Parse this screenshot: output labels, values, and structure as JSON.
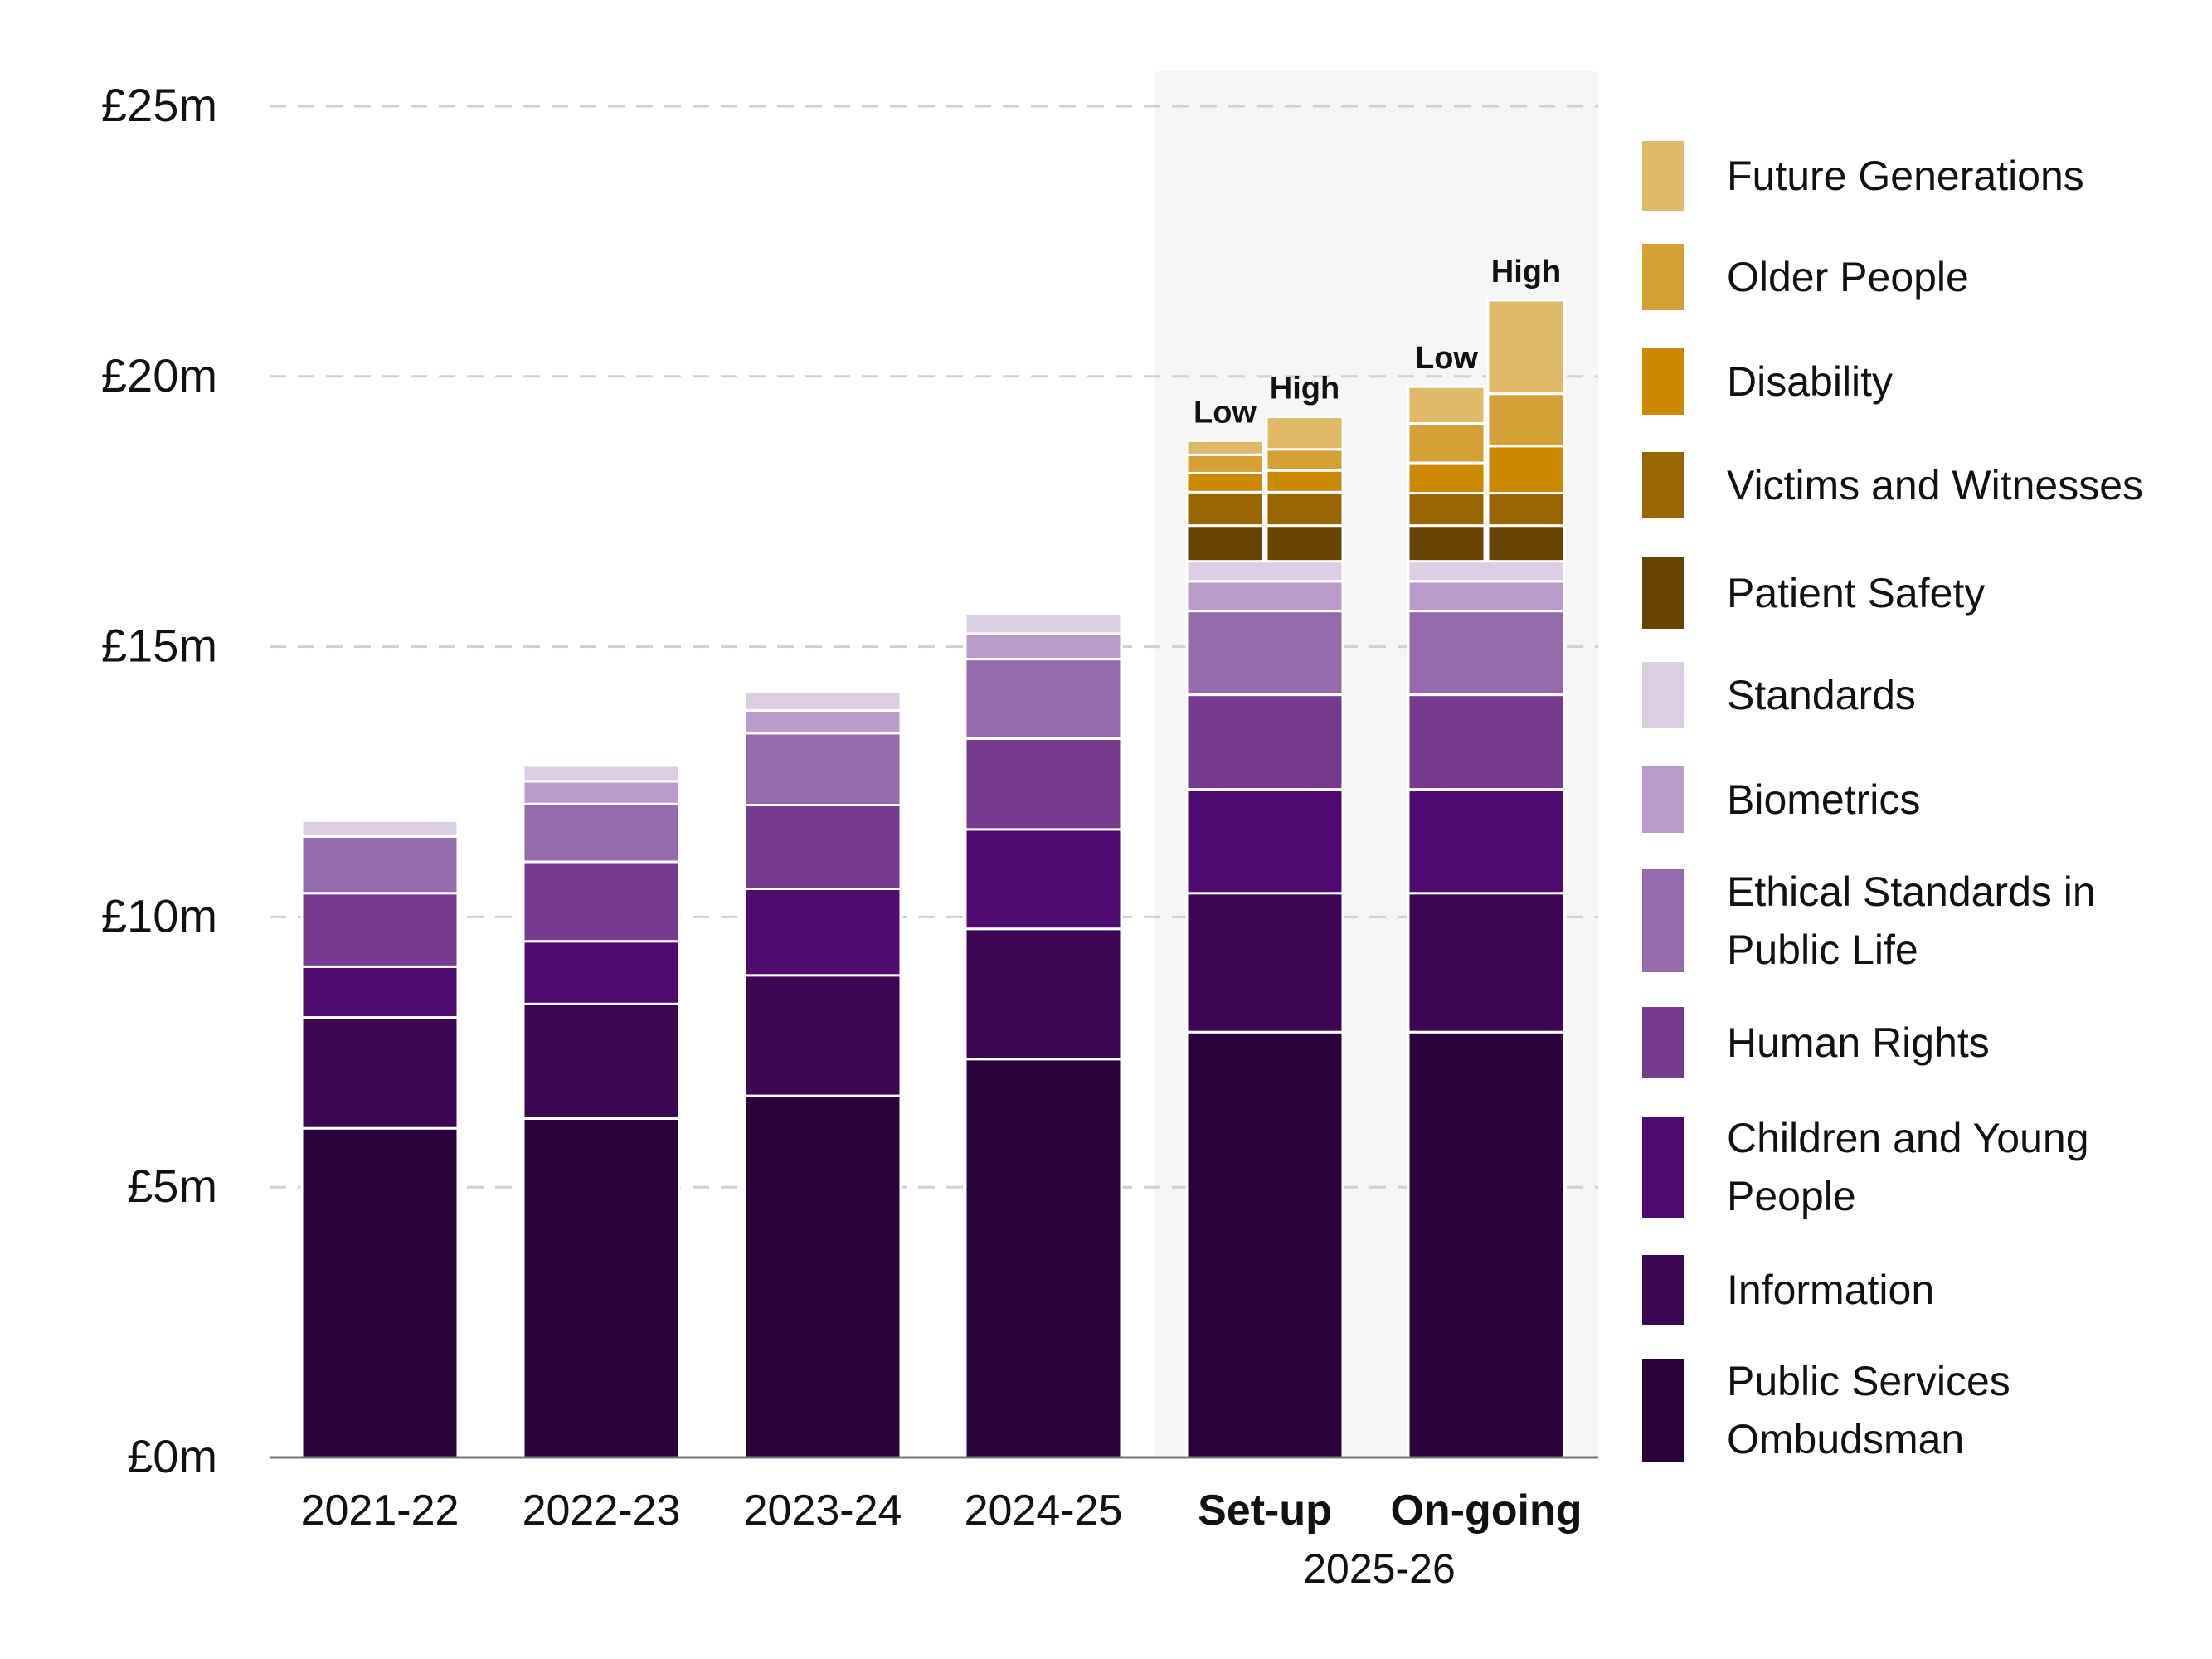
{
  "chart_data": {
    "type": "bar",
    "stacked": true,
    "categories": [
      "2021-22",
      "2022-23",
      "2023-24",
      "2024-25",
      "Set-up",
      "On-going"
    ],
    "category_group": {
      "label": "2025-26",
      "categories": [
        "Set-up",
        "On-going"
      ]
    },
    "scenario_labels": {
      "low": "Low",
      "high": "High"
    },
    "ylim": [
      0,
      25
    ],
    "yticks": [
      0,
      5,
      10,
      15,
      20,
      25
    ],
    "ytick_labels": [
      "£0m",
      "£5m",
      "£10m",
      "£15m",
      "£20m",
      "£25m"
    ],
    "xlabel": "",
    "ylabel": "",
    "grid": "horizontal dashed",
    "legend_position": "right",
    "series": [
      {
        "name": "Public Services Ombudsman",
        "color": "#2a033d",
        "values": [
          6.09,
          6.27,
          6.69,
          7.37,
          7.87,
          7.87
        ]
      },
      {
        "name": "Information",
        "color": "#3c0655",
        "values": [
          2.05,
          2.12,
          2.23,
          2.41,
          2.57,
          2.57
        ]
      },
      {
        "name": "Children and Young People",
        "color": "#500a72",
        "values": [
          0.94,
          1.16,
          1.6,
          1.84,
          1.92,
          1.92
        ]
      },
      {
        "name": "Human Rights",
        "color": "#763a8f",
        "values": [
          1.36,
          1.47,
          1.55,
          1.68,
          1.75,
          1.75
        ]
      },
      {
        "name": "Ethical Standards in Public Life",
        "color": "#966bad",
        "values": [
          1.05,
          1.07,
          1.33,
          1.47,
          1.55,
          1.55
        ]
      },
      {
        "name": "Biometrics",
        "color": "#b99cc9",
        "values": [
          null,
          0.42,
          0.42,
          0.47,
          0.55,
          0.55
        ]
      },
      {
        "name": "Standards",
        "color": "#ddcde4",
        "values": [
          0.29,
          0.29,
          0.35,
          0.37,
          0.37,
          0.37
        ]
      },
      {
        "name": "Patient Safety",
        "color": "#674200",
        "low": [
          0.66,
          0.66
        ],
        "high": [
          0.66,
          0.66
        ]
      },
      {
        "name": "Victims and Witnesses",
        "color": "#986500",
        "low": [
          0.62,
          0.6
        ],
        "high": [
          0.62,
          0.6
        ]
      },
      {
        "name": "Disability",
        "color": "#cc8800",
        "low": [
          0.35,
          0.56
        ],
        "high": [
          0.4,
          0.87
        ]
      },
      {
        "name": "Older People",
        "color": "#d5a035",
        "low": [
          0.34,
          0.73
        ],
        "high": [
          0.39,
          0.97
        ]
      },
      {
        "name": "Future Generations",
        "color": "#e0b96a",
        "low": [
          0.26,
          0.68
        ],
        "high": [
          0.6,
          1.73
        ]
      }
    ]
  },
  "legend_order": [
    "Future Generations",
    "Older People",
    "Disability",
    "Victims and Witnesses",
    "Patient Safety",
    "Standards",
    "Biometrics",
    "Ethical Standards in Public Life",
    "Human Rights",
    "Children and Young People",
    "Information",
    "Public Services Ombudsman"
  ]
}
